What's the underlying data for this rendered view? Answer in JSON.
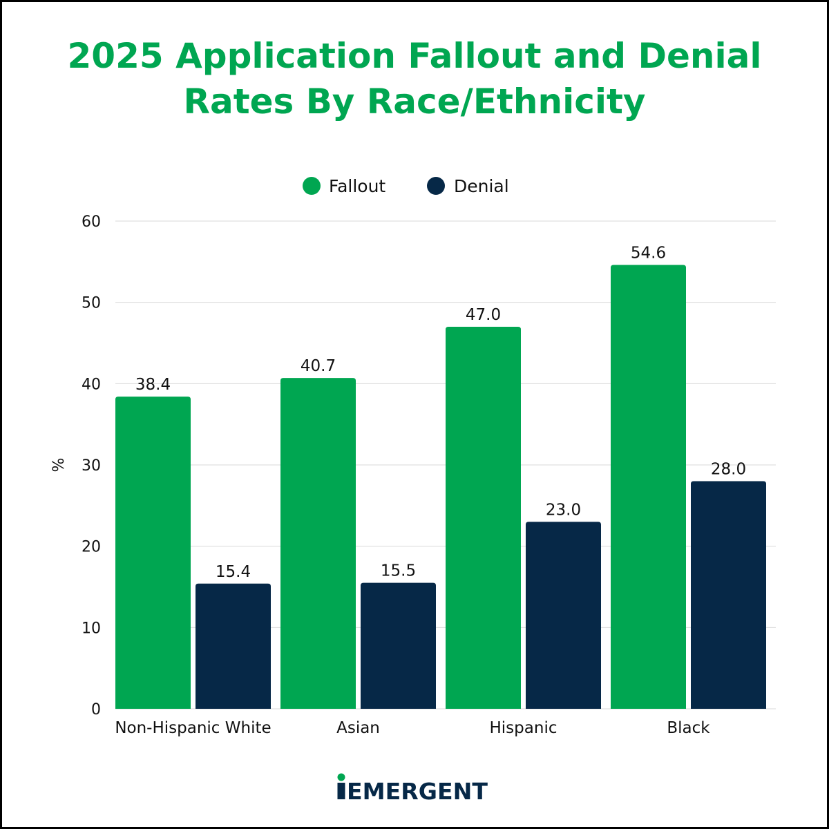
{
  "colors": {
    "accent": "#00A651",
    "fallout": "#00A651",
    "denial": "#062847",
    "grid": "#d9d9d9",
    "text": "#111111"
  },
  "title_lines": [
    "2025 Application Fallout and Denial",
    "Rates By Race/Ethnicity"
  ],
  "logo": {
    "text": "iEMERGENT"
  },
  "chart_data": {
    "type": "bar",
    "title": "2025 Application Fallout and Denial Rates By Race/Ethnicity",
    "xlabel": "",
    "ylabel": "%",
    "ylim": [
      0,
      60
    ],
    "yticks": [
      0,
      10,
      20,
      30,
      40,
      50,
      60
    ],
    "grid": true,
    "legend_position": "top-center",
    "categories": [
      "Non-Hispanic White",
      "Asian",
      "Hispanic",
      "Black"
    ],
    "series": [
      {
        "name": "Fallout",
        "color": "#00A651",
        "values": [
          38.4,
          40.7,
          47.0,
          54.6
        ],
        "labels": [
          "38.4",
          "40.7",
          "47.0",
          "54.6"
        ]
      },
      {
        "name": "Denial",
        "color": "#062847",
        "values": [
          15.4,
          15.5,
          23.0,
          28.0
        ],
        "labels": [
          "15.4",
          "15.5",
          "23.0",
          "28.0"
        ]
      }
    ]
  }
}
